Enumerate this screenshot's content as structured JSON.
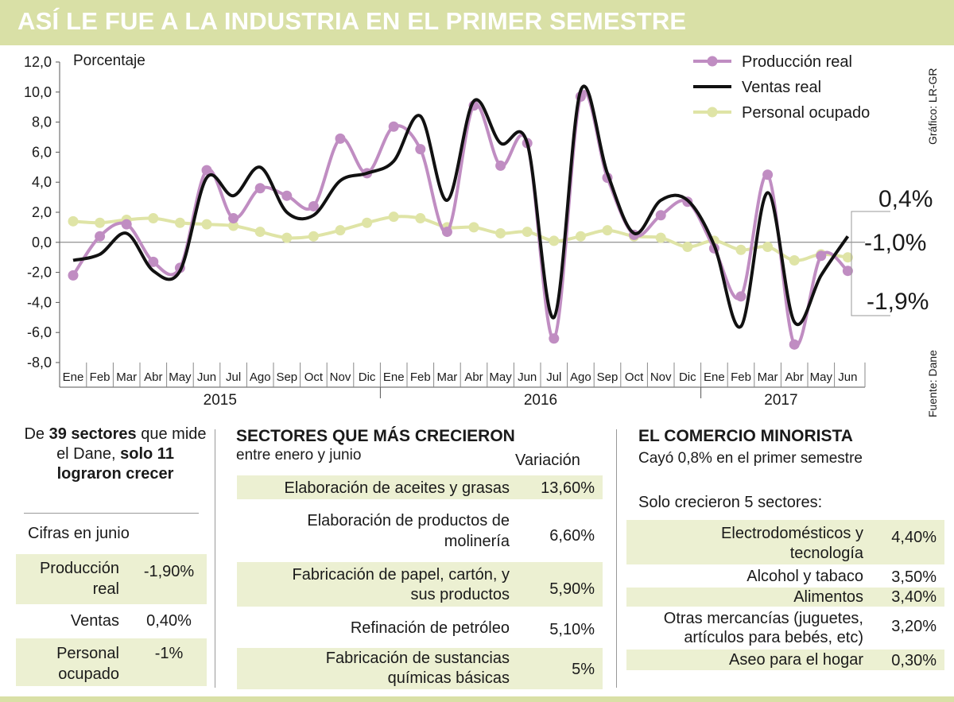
{
  "header": {
    "title": "ASÍ LE FUE A LA INDUSTRIA EN EL PRIMER SEMESTRE"
  },
  "credits": {
    "graphic": "Gráfico: LR-GR",
    "source": "Fuente: Dane"
  },
  "chart_data": {
    "type": "line",
    "ylabel": "Porcentaje",
    "ylim": [
      -8,
      12
    ],
    "yticks": [
      "12,0",
      "10,0",
      "8,0",
      "6,0",
      "4,0",
      "2,0",
      "0,0",
      "-2,0",
      "-4,0",
      "-6,0",
      "-8,0"
    ],
    "categories": [
      "Ene",
      "Feb",
      "Mar",
      "Abr",
      "May",
      "Jun",
      "Jul",
      "Ago",
      "Sep",
      "Oct",
      "Nov",
      "Dic",
      "Ene",
      "Feb",
      "Mar",
      "Abr",
      "May",
      "Jun",
      "Jul",
      "Ago",
      "Sep",
      "Oct",
      "Nov",
      "Dic",
      "Ene",
      "Feb",
      "Mar",
      "Abr",
      "May",
      "Jun"
    ],
    "years": [
      {
        "label": "2015",
        "from": 0,
        "to": 11
      },
      {
        "label": "2016",
        "from": 12,
        "to": 23
      },
      {
        "label": "2017",
        "from": 24,
        "to": 29
      }
    ],
    "series": [
      {
        "name": "Producción real",
        "color": "#c08dc2",
        "markers": true,
        "values": [
          -2.2,
          0.4,
          1.2,
          -1.3,
          -1.7,
          4.8,
          1.6,
          3.6,
          3.1,
          2.4,
          6.9,
          4.6,
          7.7,
          6.2,
          0.7,
          9.1,
          5.1,
          6.6,
          -6.4,
          9.7,
          4.3,
          0.5,
          1.8,
          2.7,
          -0.4,
          -3.6,
          4.5,
          -6.8,
          -0.9,
          -1.9
        ]
      },
      {
        "name": "Ventas real",
        "color": "#111111",
        "markers": false,
        "values": [
          -1.2,
          -0.8,
          0.6,
          -1.9,
          -1.9,
          4.3,
          3.1,
          5.0,
          2.0,
          1.8,
          4.1,
          4.6,
          5.4,
          8.4,
          2.8,
          9.4,
          6.6,
          6.6,
          -5.0,
          10.1,
          4.6,
          0.6,
          2.8,
          2.8,
          -0.2,
          -5.6,
          3.3,
          -5.3,
          -2.2,
          0.4
        ]
      },
      {
        "name": "Personal ocupado",
        "color": "#dfe4a6",
        "markers": true,
        "values": [
          1.4,
          1.3,
          1.5,
          1.6,
          1.3,
          1.2,
          1.1,
          0.7,
          0.3,
          0.4,
          0.8,
          1.3,
          1.7,
          1.6,
          1.0,
          1.0,
          0.6,
          0.7,
          0.1,
          0.4,
          0.8,
          0.4,
          0.3,
          -0.3,
          0.1,
          -0.5,
          -0.3,
          -1.2,
          -0.8,
          -1.0
        ]
      }
    ],
    "end_labels": [
      "0,4%",
      "-1,0%",
      "-1,9%"
    ]
  },
  "summary": {
    "intro_pre": "De ",
    "intro_num1": "39 sectores",
    "intro_mid": " que mide el Dane, ",
    "intro_bold": "solo 11 lograron crecer"
  },
  "june": {
    "title": "Cifras en junio",
    "rows": [
      {
        "label_1": "Producción",
        "label_2": "real",
        "value": "-1,90%"
      },
      {
        "label_1": "Ventas",
        "label_2": "",
        "value": "0,40%"
      },
      {
        "label_1": "Personal",
        "label_2": "ocupado",
        "value": "-1%"
      }
    ]
  },
  "sectors": {
    "title": "SECTORES QUE MÁS CRECIERON",
    "subtitle": "entre enero y junio",
    "column_header": "Variación",
    "rows": [
      {
        "label_1": "Elaboración de aceites y grasas",
        "label_2": "",
        "value": "13,60%"
      },
      {
        "label_1": "Elaboración de productos de",
        "label_2": "molinería",
        "value": "6,60%"
      },
      {
        "label_1": "Fabricación de papel, cartón, y",
        "label_2": "sus productos",
        "value": "5,90%"
      },
      {
        "label_1": "Refinación de petróleo",
        "label_2": "",
        "value": "5,10%"
      },
      {
        "label_1": "Fabricación de sustancias",
        "label_2": "químicas básicas",
        "value": "5%"
      }
    ]
  },
  "retail": {
    "title": "EL COMERCIO MINORISTA",
    "subtitle_pre": "Cayó ",
    "subtitle_num": "0,8%",
    "subtitle_post": " en el primer semestre",
    "subtitle2": "Solo crecieron 5 sectores:",
    "rows": [
      {
        "label_1": "Electrodomésticos y",
        "label_2": "tecnología",
        "value": "4,40%"
      },
      {
        "label_1": "Alcohol y tabaco",
        "label_2": "",
        "value": "3,50%"
      },
      {
        "label_1": "Alimentos",
        "label_2": "",
        "value": "3,40%"
      },
      {
        "label_1": "Otras mercancías (juguetes,",
        "label_2": "artículos para bebés, etc)",
        "value": "3,20%"
      },
      {
        "label_1": "Aseo para el hogar",
        "label_2": "",
        "value": "0,30%"
      }
    ]
  }
}
